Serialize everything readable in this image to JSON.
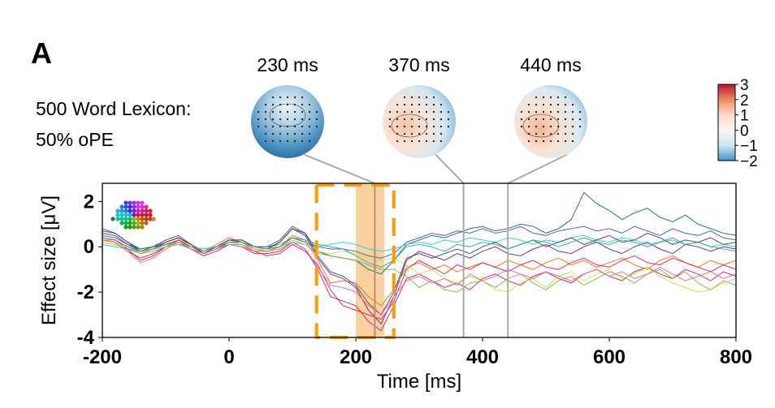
{
  "panel_label": "A",
  "condition_label": [
    "500 Word Lexicon:",
    "50% oPE"
  ],
  "topomaps": [
    {
      "label": "230 ms",
      "time": 230,
      "scheme": "negative"
    },
    {
      "label": "370 ms",
      "time": 370,
      "scheme": "mixed"
    },
    {
      "label": "440 ms",
      "time": 440,
      "scheme": "mixed2"
    }
  ],
  "colorbar": {
    "colormap": "RdBu_r",
    "range": [
      -2,
      3
    ],
    "ticks": [
      "3",
      "2",
      "1",
      "0",
      "−1",
      "−2"
    ],
    "tick_values": [
      3,
      2,
      1,
      0,
      -1,
      -2
    ]
  },
  "chart_data": {
    "type": "line",
    "xlabel": "Time [ms]",
    "ylabel": "Effect size [μV]",
    "xlim": [
      -200,
      800
    ],
    "ylim": [
      -4,
      2.8
    ],
    "xticks": [
      -200,
      0,
      200,
      400,
      600,
      800
    ],
    "xtick_labels": [
      "-200",
      "0",
      "200",
      "400",
      "600",
      "800"
    ],
    "yticks": [
      2,
      0,
      -2,
      -4
    ],
    "ytick_labels": [
      "2",
      "0",
      "-2",
      "-4"
    ],
    "grid": false,
    "highlight_band": {
      "from": 200,
      "to": 245,
      "color": "#f9c98f"
    },
    "dashed_window": {
      "from": 138,
      "to": 260,
      "color": "#ff9900"
    },
    "time_markers": [
      230,
      370,
      440
    ],
    "x_step_ms": 20,
    "series": [
      {
        "color": "#c2185b",
        "values": [
          0.3,
          0.2,
          -0.2,
          -0.5,
          -0.3,
          0.0,
          0.2,
          -0.1,
          -0.4,
          -0.2,
          0.1,
          0.0,
          -0.3,
          -0.3,
          -0.2,
          0.2,
          -0.1,
          -1.0,
          -2.2,
          -2.4,
          -2.6,
          -3.3,
          -3.7,
          -2.6,
          -1.4,
          -1.2,
          -1.5,
          -1.8,
          -1.6,
          -1.9,
          -1.4,
          -1.2,
          -1.5,
          -1.7,
          -1.3,
          -1.1,
          -1.4,
          -1.6,
          -1.2,
          -1.0,
          -1.3,
          -1.5,
          -1.1,
          -0.9,
          -1.2,
          -1.4,
          -1.0,
          -1.2,
          -1.5,
          -1.1,
          -1.3
        ]
      },
      {
        "color": "#1b5e6b",
        "values": [
          0.7,
          0.6,
          0.2,
          -0.1,
          0.0,
          0.2,
          0.4,
          0.1,
          -0.2,
          0.0,
          0.3,
          0.3,
          0.0,
          0.0,
          0.3,
          0.9,
          0.6,
          -0.2,
          -0.4,
          -0.5,
          -0.6,
          -1.0,
          -1.2,
          -0.6,
          0.1,
          0.3,
          0.5,
          0.4,
          0.6,
          0.8,
          0.9,
          0.7,
          0.8,
          1.0,
          0.9,
          0.6,
          0.8,
          1.2,
          2.4,
          1.9,
          1.6,
          1.2,
          1.5,
          1.7,
          1.3,
          1.1,
          1.4,
          1.0,
          0.8,
          0.6,
          0.5
        ]
      },
      {
        "color": "#7cb342",
        "values": [
          0.2,
          0.1,
          -0.1,
          -0.3,
          -0.2,
          0.0,
          0.1,
          -0.1,
          -0.3,
          -0.1,
          0.1,
          0.0,
          -0.2,
          -0.2,
          0.0,
          0.3,
          0.1,
          -0.3,
          -0.4,
          -0.5,
          -0.6,
          -0.8,
          -1.0,
          -1.0,
          -1.3,
          -1.8,
          -1.5,
          -1.9,
          -2.0,
          -1.6,
          -1.5,
          -1.8,
          -1.4,
          -1.2,
          -1.6,
          -1.9,
          -1.5,
          -1.3,
          -1.7,
          -1.4,
          -1.1,
          -1.3,
          -1.6,
          -1.2,
          -1.0,
          -1.4,
          -1.1,
          -1.6,
          -1.9,
          -1.5,
          -1.7
        ]
      },
      {
        "color": "#6a1b9a",
        "values": [
          0.6,
          0.5,
          0.1,
          -0.2,
          -0.1,
          0.2,
          0.4,
          0.1,
          -0.2,
          0.0,
          0.3,
          0.2,
          -0.1,
          -0.1,
          0.2,
          0.8,
          0.5,
          -0.5,
          -1.2,
          -1.4,
          -1.8,
          -2.8,
          -3.4,
          -2.2,
          -0.6,
          -0.2,
          -0.4,
          -0.6,
          -0.3,
          -0.5,
          -0.2,
          0.0,
          -0.3,
          -0.4,
          -0.1,
          0.1,
          -0.2,
          -0.3,
          0.0,
          0.2,
          -0.1,
          -0.3,
          0.0,
          0.2,
          -0.1,
          -0.3,
          0.1,
          0.0,
          -0.2,
          0.0,
          -0.1
        ]
      },
      {
        "color": "#3f51b5",
        "values": [
          0.5,
          0.4,
          0.1,
          -0.1,
          0.0,
          0.1,
          0.3,
          0.0,
          -0.2,
          0.0,
          0.2,
          0.2,
          0.0,
          0.0,
          0.1,
          0.4,
          0.2,
          0.0,
          -0.1,
          -0.1,
          -0.2,
          -0.4,
          -0.5,
          -0.3,
          0.2,
          0.4,
          0.6,
          0.5,
          0.7,
          0.6,
          0.8,
          0.6,
          0.7,
          0.9,
          0.6,
          0.5,
          0.7,
          0.8,
          0.9,
          0.7,
          0.8,
          0.6,
          0.9,
          0.7,
          0.5,
          0.8,
          0.6,
          0.5,
          0.7,
          0.4,
          0.3
        ]
      },
      {
        "color": "#ef6c00",
        "values": [
          0.3,
          0.3,
          0.0,
          -0.3,
          -0.1,
          0.1,
          0.3,
          0.1,
          -0.2,
          0.1,
          0.4,
          0.2,
          -0.1,
          -0.2,
          0.0,
          0.5,
          0.3,
          -0.6,
          -1.6,
          -1.5,
          -1.6,
          -2.2,
          -2.6,
          -1.9,
          -0.9,
          -0.7,
          -1.0,
          -0.8,
          -1.1,
          -0.9,
          -0.7,
          -0.9,
          -0.6,
          -0.8,
          -1.0,
          -0.7,
          -0.5,
          -0.8,
          -0.6,
          -0.9,
          -0.7,
          -0.5,
          -0.8,
          -1.0,
          -0.6,
          -0.4,
          -0.7,
          -0.9,
          -0.6,
          -0.8,
          -0.6
        ]
      },
      {
        "color": "#26c6da",
        "values": [
          0.1,
          0.0,
          -0.1,
          -0.2,
          -0.1,
          0.0,
          0.1,
          0.0,
          -0.1,
          0.0,
          0.1,
          0.1,
          -0.1,
          -0.1,
          0.0,
          0.2,
          0.1,
          0.0,
          0.1,
          0.2,
          0.1,
          -0.1,
          -0.2,
          -0.1,
          0.1,
          0.2,
          0.1,
          0.3,
          0.2,
          0.4,
          0.3,
          0.2,
          0.4,
          0.3,
          0.1,
          0.3,
          0.2,
          0.4,
          0.5,
          0.3,
          0.2,
          0.4,
          0.3,
          0.1,
          0.2,
          0.3,
          0.1,
          0.2,
          0.0,
          0.1,
          0.0
        ]
      },
      {
        "color": "#d81b60",
        "values": [
          0.4,
          0.3,
          -0.1,
          -0.6,
          -0.4,
          0.0,
          0.3,
          0.0,
          -0.3,
          -0.1,
          0.2,
          0.1,
          -0.2,
          -0.4,
          -0.3,
          0.1,
          -0.2,
          -0.8,
          -1.9,
          -2.6,
          -2.8,
          -3.0,
          -3.2,
          -2.4,
          -1.0,
          -0.6,
          -0.9,
          -1.2,
          -0.8,
          -1.0,
          -0.7,
          -0.9,
          -1.1,
          -0.8,
          -0.6,
          -0.9,
          -1.0,
          -0.7,
          -0.5,
          -0.8,
          -0.9,
          -0.6,
          -0.4,
          -0.7,
          -0.8,
          -0.5,
          -0.7,
          -0.9,
          -1.1,
          -0.8,
          -1.0
        ]
      },
      {
        "color": "#c6e040",
        "values": [
          0.2,
          0.1,
          0.0,
          -0.2,
          -0.1,
          0.0,
          0.2,
          0.0,
          -0.2,
          0.0,
          0.2,
          0.1,
          -0.1,
          -0.1,
          0.1,
          0.3,
          0.1,
          -0.2,
          -0.3,
          -0.2,
          -0.3,
          -0.5,
          -0.6,
          -0.5,
          -0.8,
          -1.2,
          -1.0,
          -1.4,
          -1.6,
          -1.3,
          -1.5,
          -1.9,
          -2.0,
          -1.6,
          -1.4,
          -1.8,
          -1.3,
          -1.1,
          -1.5,
          -1.2,
          -1.0,
          -1.4,
          -1.2,
          -0.9,
          -1.3,
          -1.6,
          -1.8,
          -2.0,
          -1.9,
          -1.6,
          -1.4
        ]
      },
      {
        "color": "#37474f",
        "values": [
          0.8,
          0.6,
          0.2,
          -0.2,
          0.0,
          0.3,
          0.5,
          0.1,
          -0.3,
          0.0,
          0.3,
          0.3,
          0.0,
          -0.1,
          0.2,
          0.8,
          0.6,
          -0.4,
          -1.1,
          -1.3,
          -1.7,
          -2.5,
          -3.0,
          -2.0,
          -0.5,
          -0.3,
          -0.5,
          -0.3,
          -0.1,
          -0.3,
          0.0,
          0.2,
          -0.1,
          0.1,
          0.3,
          0.0,
          0.2,
          0.4,
          0.1,
          0.3,
          0.5,
          0.2,
          0.3,
          0.6,
          0.4,
          0.1,
          0.3,
          0.2,
          0.4,
          0.1,
          0.2
        ]
      },
      {
        "color": "#26a69a",
        "values": [
          0.4,
          0.3,
          0.0,
          -0.2,
          -0.1,
          0.1,
          0.2,
          0.0,
          -0.2,
          0.0,
          0.2,
          0.2,
          0.0,
          -0.1,
          0.0,
          0.4,
          0.3,
          0.1,
          0.0,
          -0.1,
          -0.4,
          -0.7,
          -0.9,
          -0.6,
          0.0,
          0.1,
          0.0,
          -0.2,
          0.1,
          0.0,
          0.2,
          0.1,
          -0.1,
          0.1,
          0.3,
          0.2,
          0.0,
          0.2,
          0.4,
          0.2,
          0.1,
          0.3,
          0.2,
          0.0,
          0.2,
          0.4,
          0.1,
          0.2,
          0.0,
          -0.1,
          -0.2
        ]
      },
      {
        "color": "#f06292",
        "values": [
          0.3,
          0.2,
          -0.2,
          -0.7,
          -0.5,
          -0.1,
          0.2,
          -0.1,
          -0.3,
          -0.1,
          0.1,
          0.0,
          -0.2,
          -0.2,
          -0.1,
          0.2,
          -0.1,
          -0.9,
          -1.7,
          -1.8,
          -2.0,
          -2.6,
          -3.0,
          -2.2,
          -1.5,
          -1.3,
          -1.6,
          -1.4,
          -1.7,
          -1.2,
          -1.5,
          -1.3,
          -1.0,
          -1.2,
          -1.4,
          -1.1,
          -1.3,
          -1.5,
          -1.2,
          -1.0,
          -1.3,
          -1.1,
          -1.4,
          -1.2,
          -0.9,
          -1.2,
          -1.5,
          -1.3,
          -1.1,
          -1.4,
          -1.2
        ]
      }
    ]
  }
}
